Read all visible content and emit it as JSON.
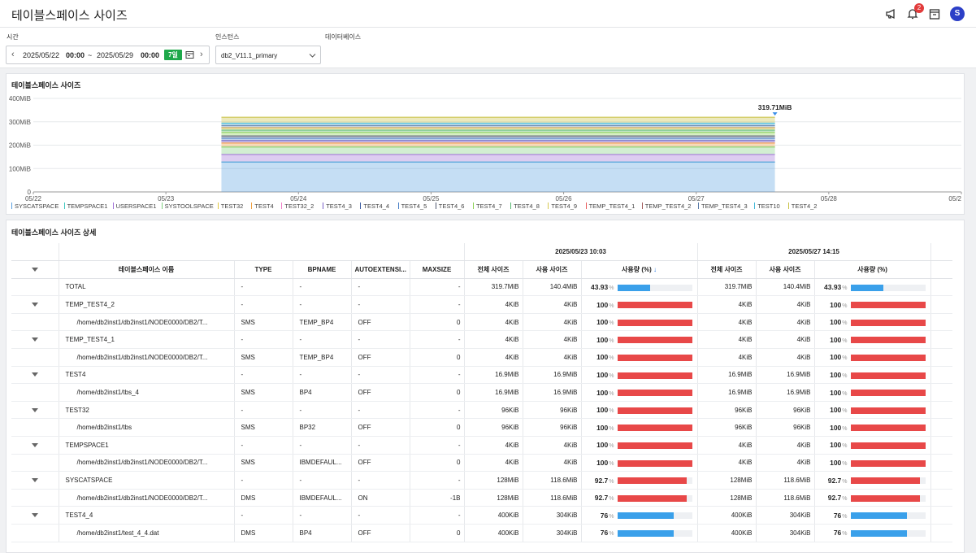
{
  "header": {
    "title": "테이블스페이스 사이즈",
    "badge": "2",
    "avatar": "S"
  },
  "filters": {
    "time_label": "시간",
    "instance_label": "인스턴스",
    "database_label": "데이터베이스",
    "start_date": "2025/05/22",
    "start_time": "00:00",
    "tilde": "~",
    "end_date": "2025/05/29",
    "end_time": "00:00",
    "range_chip": "7일",
    "instance_value": "db2_V11.1_primary"
  },
  "chart": {
    "title": "테이블스페이스 사이즈",
    "peak_label": "319.71MiB"
  },
  "chart_data": {
    "type": "area",
    "title": "테이블스페이스 사이즈",
    "x_ticks": [
      "05/22",
      "05/23",
      "05/24",
      "05/25",
      "05/26",
      "05/27",
      "05/28",
      "05/2"
    ],
    "y_ticks": [
      "0",
      "100MiB",
      "200MiB",
      "300MiB",
      "400MiB"
    ],
    "ylim": [
      0,
      400
    ],
    "x_range": [
      "05/23 10:03",
      "05/27 14:15"
    ],
    "series": [
      {
        "name": "SYSCATSPACE",
        "color": "#5aa0e0",
        "value": 128
      },
      {
        "name": "TEMPSPACE1",
        "color": "#3ec8c0",
        "value": 0.004
      },
      {
        "name": "USERSPACE1",
        "color": "#9f6fd8",
        "value": 32
      },
      {
        "name": "SYSTOOLSPACE",
        "color": "#7ed07e",
        "value": 32
      },
      {
        "name": "TEST32",
        "color": "#e0c840",
        "value": 0.1
      },
      {
        "name": "TEST4",
        "color": "#f0a040",
        "value": 16.9
      },
      {
        "name": "TEST32_2",
        "color": "#f080c8",
        "value": 0.1
      },
      {
        "name": "TEST4_3",
        "color": "#7a60c8",
        "value": 10
      },
      {
        "name": "TEST4_4",
        "color": "#3a5aa0",
        "value": 0.4
      },
      {
        "name": "TEST4_5",
        "color": "#4a80c8",
        "value": 10
      },
      {
        "name": "TEST4_6",
        "color": "#505870",
        "value": 10
      },
      {
        "name": "TEST4_7",
        "color": "#8ad050",
        "value": 15
      },
      {
        "name": "TEST4_8",
        "color": "#58b870",
        "value": 10
      },
      {
        "name": "TEST4_9",
        "color": "#d8c850",
        "value": 10
      },
      {
        "name": "TEMP_TEST4_1",
        "color": "#e85858",
        "value": 0.004
      },
      {
        "name": "TEMP_TEST4_2",
        "color": "#a05a5a",
        "value": 0.004
      },
      {
        "name": "TEMP_TEST4_3",
        "color": "#5a7aa8",
        "value": 10
      },
      {
        "name": "TEST10",
        "color": "#40b8d8",
        "value": 10
      },
      {
        "name": "TEST4_2",
        "color": "#c8c040",
        "value": 25
      }
    ],
    "total_peak": 319.71
  },
  "table": {
    "title": "테이블스페이스 사이즈 상세",
    "group1": "2025/05/23 10:03",
    "group2": "2025/05/27 14:15",
    "headers": {
      "name": "테이블스페이스 이름",
      "type": "TYPE",
      "bpname": "BPNAME",
      "autoext": "AUTOEXTENSI...",
      "maxsize": "MAXSIZE",
      "total": "전체 사이즈",
      "used": "사용 사이즈",
      "usage": "사용량 (%)",
      "sort": "↓"
    },
    "pct_unit": "%",
    "rows": [
      {
        "name": "TOTAL",
        "type": "-",
        "bp": "-",
        "auto": "-",
        "max": "-",
        "t1": "319.7MiB",
        "u1": "140.4MiB",
        "p1": "43.93",
        "f1": 0.4393,
        "c1": "#3aa0ea",
        "t2": "319.7MiB",
        "u2": "140.4MiB",
        "p2": "43.93",
        "f2": 0.4393,
        "c2": "#3aa0ea",
        "toggle": false,
        "child": false
      },
      {
        "name": "TEMP_TEST4_2",
        "type": "-",
        "bp": "-",
        "auto": "-",
        "max": "-",
        "t1": "4KiB",
        "u1": "4KiB",
        "p1": "100",
        "f1": 1,
        "c1": "#e84848",
        "t2": "4KiB",
        "u2": "4KiB",
        "p2": "100",
        "f2": 1,
        "c2": "#e84848",
        "toggle": true,
        "child": false
      },
      {
        "name": "/home/db2inst1/db2inst1/NODE0000/DB2/T...",
        "type": "SMS",
        "bp": "TEMP_BP4",
        "auto": "OFF",
        "max": "0",
        "t1": "4KiB",
        "u1": "4KiB",
        "p1": "100",
        "f1": 1,
        "c1": "#e84848",
        "t2": "4KiB",
        "u2": "4KiB",
        "p2": "100",
        "f2": 1,
        "c2": "#e84848",
        "toggle": false,
        "child": true
      },
      {
        "name": "TEMP_TEST4_1",
        "type": "-",
        "bp": "-",
        "auto": "-",
        "max": "-",
        "t1": "4KiB",
        "u1": "4KiB",
        "p1": "100",
        "f1": 1,
        "c1": "#e84848",
        "t2": "4KiB",
        "u2": "4KiB",
        "p2": "100",
        "f2": 1,
        "c2": "#e84848",
        "toggle": true,
        "child": false
      },
      {
        "name": "/home/db2inst1/db2inst1/NODE0000/DB2/T...",
        "type": "SMS",
        "bp": "TEMP_BP4",
        "auto": "OFF",
        "max": "0",
        "t1": "4KiB",
        "u1": "4KiB",
        "p1": "100",
        "f1": 1,
        "c1": "#e84848",
        "t2": "4KiB",
        "u2": "4KiB",
        "p2": "100",
        "f2": 1,
        "c2": "#e84848",
        "toggle": false,
        "child": true
      },
      {
        "name": "TEST4",
        "type": "-",
        "bp": "-",
        "auto": "-",
        "max": "-",
        "t1": "16.9MiB",
        "u1": "16.9MiB",
        "p1": "100",
        "f1": 1,
        "c1": "#e84848",
        "t2": "16.9MiB",
        "u2": "16.9MiB",
        "p2": "100",
        "f2": 1,
        "c2": "#e84848",
        "toggle": true,
        "child": false
      },
      {
        "name": "/home/db2inst1/tbs_4",
        "type": "SMS",
        "bp": "BP4",
        "auto": "OFF",
        "max": "0",
        "t1": "16.9MiB",
        "u1": "16.9MiB",
        "p1": "100",
        "f1": 1,
        "c1": "#e84848",
        "t2": "16.9MiB",
        "u2": "16.9MiB",
        "p2": "100",
        "f2": 1,
        "c2": "#e84848",
        "toggle": false,
        "child": true
      },
      {
        "name": "TEST32",
        "type": "-",
        "bp": "-",
        "auto": "-",
        "max": "-",
        "t1": "96KiB",
        "u1": "96KiB",
        "p1": "100",
        "f1": 1,
        "c1": "#e84848",
        "t2": "96KiB",
        "u2": "96KiB",
        "p2": "100",
        "f2": 1,
        "c2": "#e84848",
        "toggle": true,
        "child": false
      },
      {
        "name": "/home/db2inst1/tbs",
        "type": "SMS",
        "bp": "BP32",
        "auto": "OFF",
        "max": "0",
        "t1": "96KiB",
        "u1": "96KiB",
        "p1": "100",
        "f1": 1,
        "c1": "#e84848",
        "t2": "96KiB",
        "u2": "96KiB",
        "p2": "100",
        "f2": 1,
        "c2": "#e84848",
        "toggle": false,
        "child": true
      },
      {
        "name": "TEMPSPACE1",
        "type": "-",
        "bp": "-",
        "auto": "-",
        "max": "-",
        "t1": "4KiB",
        "u1": "4KiB",
        "p1": "100",
        "f1": 1,
        "c1": "#e84848",
        "t2": "4KiB",
        "u2": "4KiB",
        "p2": "100",
        "f2": 1,
        "c2": "#e84848",
        "toggle": true,
        "child": false
      },
      {
        "name": "/home/db2inst1/db2inst1/NODE0000/DB2/T...",
        "type": "SMS",
        "bp": "IBMDEFAUL...",
        "auto": "OFF",
        "max": "0",
        "t1": "4KiB",
        "u1": "4KiB",
        "p1": "100",
        "f1": 1,
        "c1": "#e84848",
        "t2": "4KiB",
        "u2": "4KiB",
        "p2": "100",
        "f2": 1,
        "c2": "#e84848",
        "toggle": false,
        "child": true
      },
      {
        "name": "SYSCATSPACE",
        "type": "-",
        "bp": "-",
        "auto": "-",
        "max": "-",
        "t1": "128MiB",
        "u1": "118.6MiB",
        "p1": "92.7",
        "f1": 0.927,
        "c1": "#e84848",
        "t2": "128MiB",
        "u2": "118.6MiB",
        "p2": "92.7",
        "f2": 0.927,
        "c2": "#e84848",
        "toggle": true,
        "child": false
      },
      {
        "name": "/home/db2inst1/db2inst1/NODE0000/DB2/T...",
        "type": "DMS",
        "bp": "IBMDEFAUL...",
        "auto": "ON",
        "max": "-1B",
        "t1": "128MiB",
        "u1": "118.6MiB",
        "p1": "92.7",
        "f1": 0.927,
        "c1": "#e84848",
        "t2": "128MiB",
        "u2": "118.6MiB",
        "p2": "92.7",
        "f2": 0.927,
        "c2": "#e84848",
        "toggle": false,
        "child": true
      },
      {
        "name": "TEST4_4",
        "type": "-",
        "bp": "-",
        "auto": "-",
        "max": "-",
        "t1": "400KiB",
        "u1": "304KiB",
        "p1": "76",
        "f1": 0.76,
        "c1": "#3aa0ea",
        "t2": "400KiB",
        "u2": "304KiB",
        "p2": "76",
        "f2": 0.76,
        "c2": "#3aa0ea",
        "toggle": true,
        "child": false
      },
      {
        "name": "/home/db2inst1/test_4_4.dat",
        "type": "DMS",
        "bp": "BP4",
        "auto": "OFF",
        "max": "0",
        "t1": "400KiB",
        "u1": "304KiB",
        "p1": "76",
        "f1": 0.76,
        "c1": "#3aa0ea",
        "t2": "400KiB",
        "u2": "304KiB",
        "p2": "76",
        "f2": 0.76,
        "c2": "#3aa0ea",
        "toggle": false,
        "child": true
      }
    ]
  }
}
